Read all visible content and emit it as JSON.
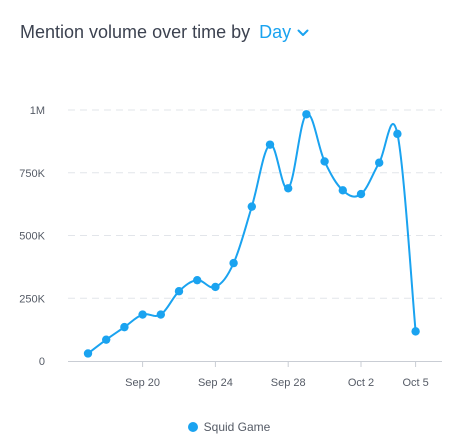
{
  "header": {
    "title": "Mention volume over time by",
    "granularity": "Day"
  },
  "colors": {
    "series": "#1aa3f0",
    "grid": "#e2e5ea",
    "axis": "#555b66"
  },
  "chart_data": {
    "type": "line",
    "title": "Mention volume over time by Day",
    "xlabel": "",
    "ylabel": "",
    "ylim": [
      0,
      1000000
    ],
    "grid": true,
    "legend": "bottom-center",
    "y_ticks": [
      {
        "value": 0,
        "label": "0"
      },
      {
        "value": 250000,
        "label": "250K"
      },
      {
        "value": 500000,
        "label": "500K"
      },
      {
        "value": 750000,
        "label": "750K"
      },
      {
        "value": 1000000,
        "label": "1M"
      }
    ],
    "x_ticks": [
      {
        "index": 3,
        "label": "Sep 20"
      },
      {
        "index": 7,
        "label": "Sep 24"
      },
      {
        "index": 11,
        "label": "Sep 28"
      },
      {
        "index": 15,
        "label": "Oct 2"
      },
      {
        "index": 18,
        "label": "Oct 5"
      }
    ],
    "x": [
      "Sep 17",
      "Sep 18",
      "Sep 19",
      "Sep 20",
      "Sep 21",
      "Sep 22",
      "Sep 23",
      "Sep 24",
      "Sep 25",
      "Sep 26",
      "Sep 27",
      "Sep 28",
      "Sep 29",
      "Sep 30",
      "Oct 1",
      "Oct 2",
      "Oct 3",
      "Oct 4",
      "Oct 5"
    ],
    "series": [
      {
        "name": "Squid Game",
        "values": [
          30000,
          85000,
          135000,
          185000,
          185000,
          278000,
          322000,
          295000,
          390000,
          615000,
          862000,
          688000,
          983000,
          795000,
          680000,
          665000,
          790000,
          905000,
          118000
        ]
      }
    ]
  }
}
